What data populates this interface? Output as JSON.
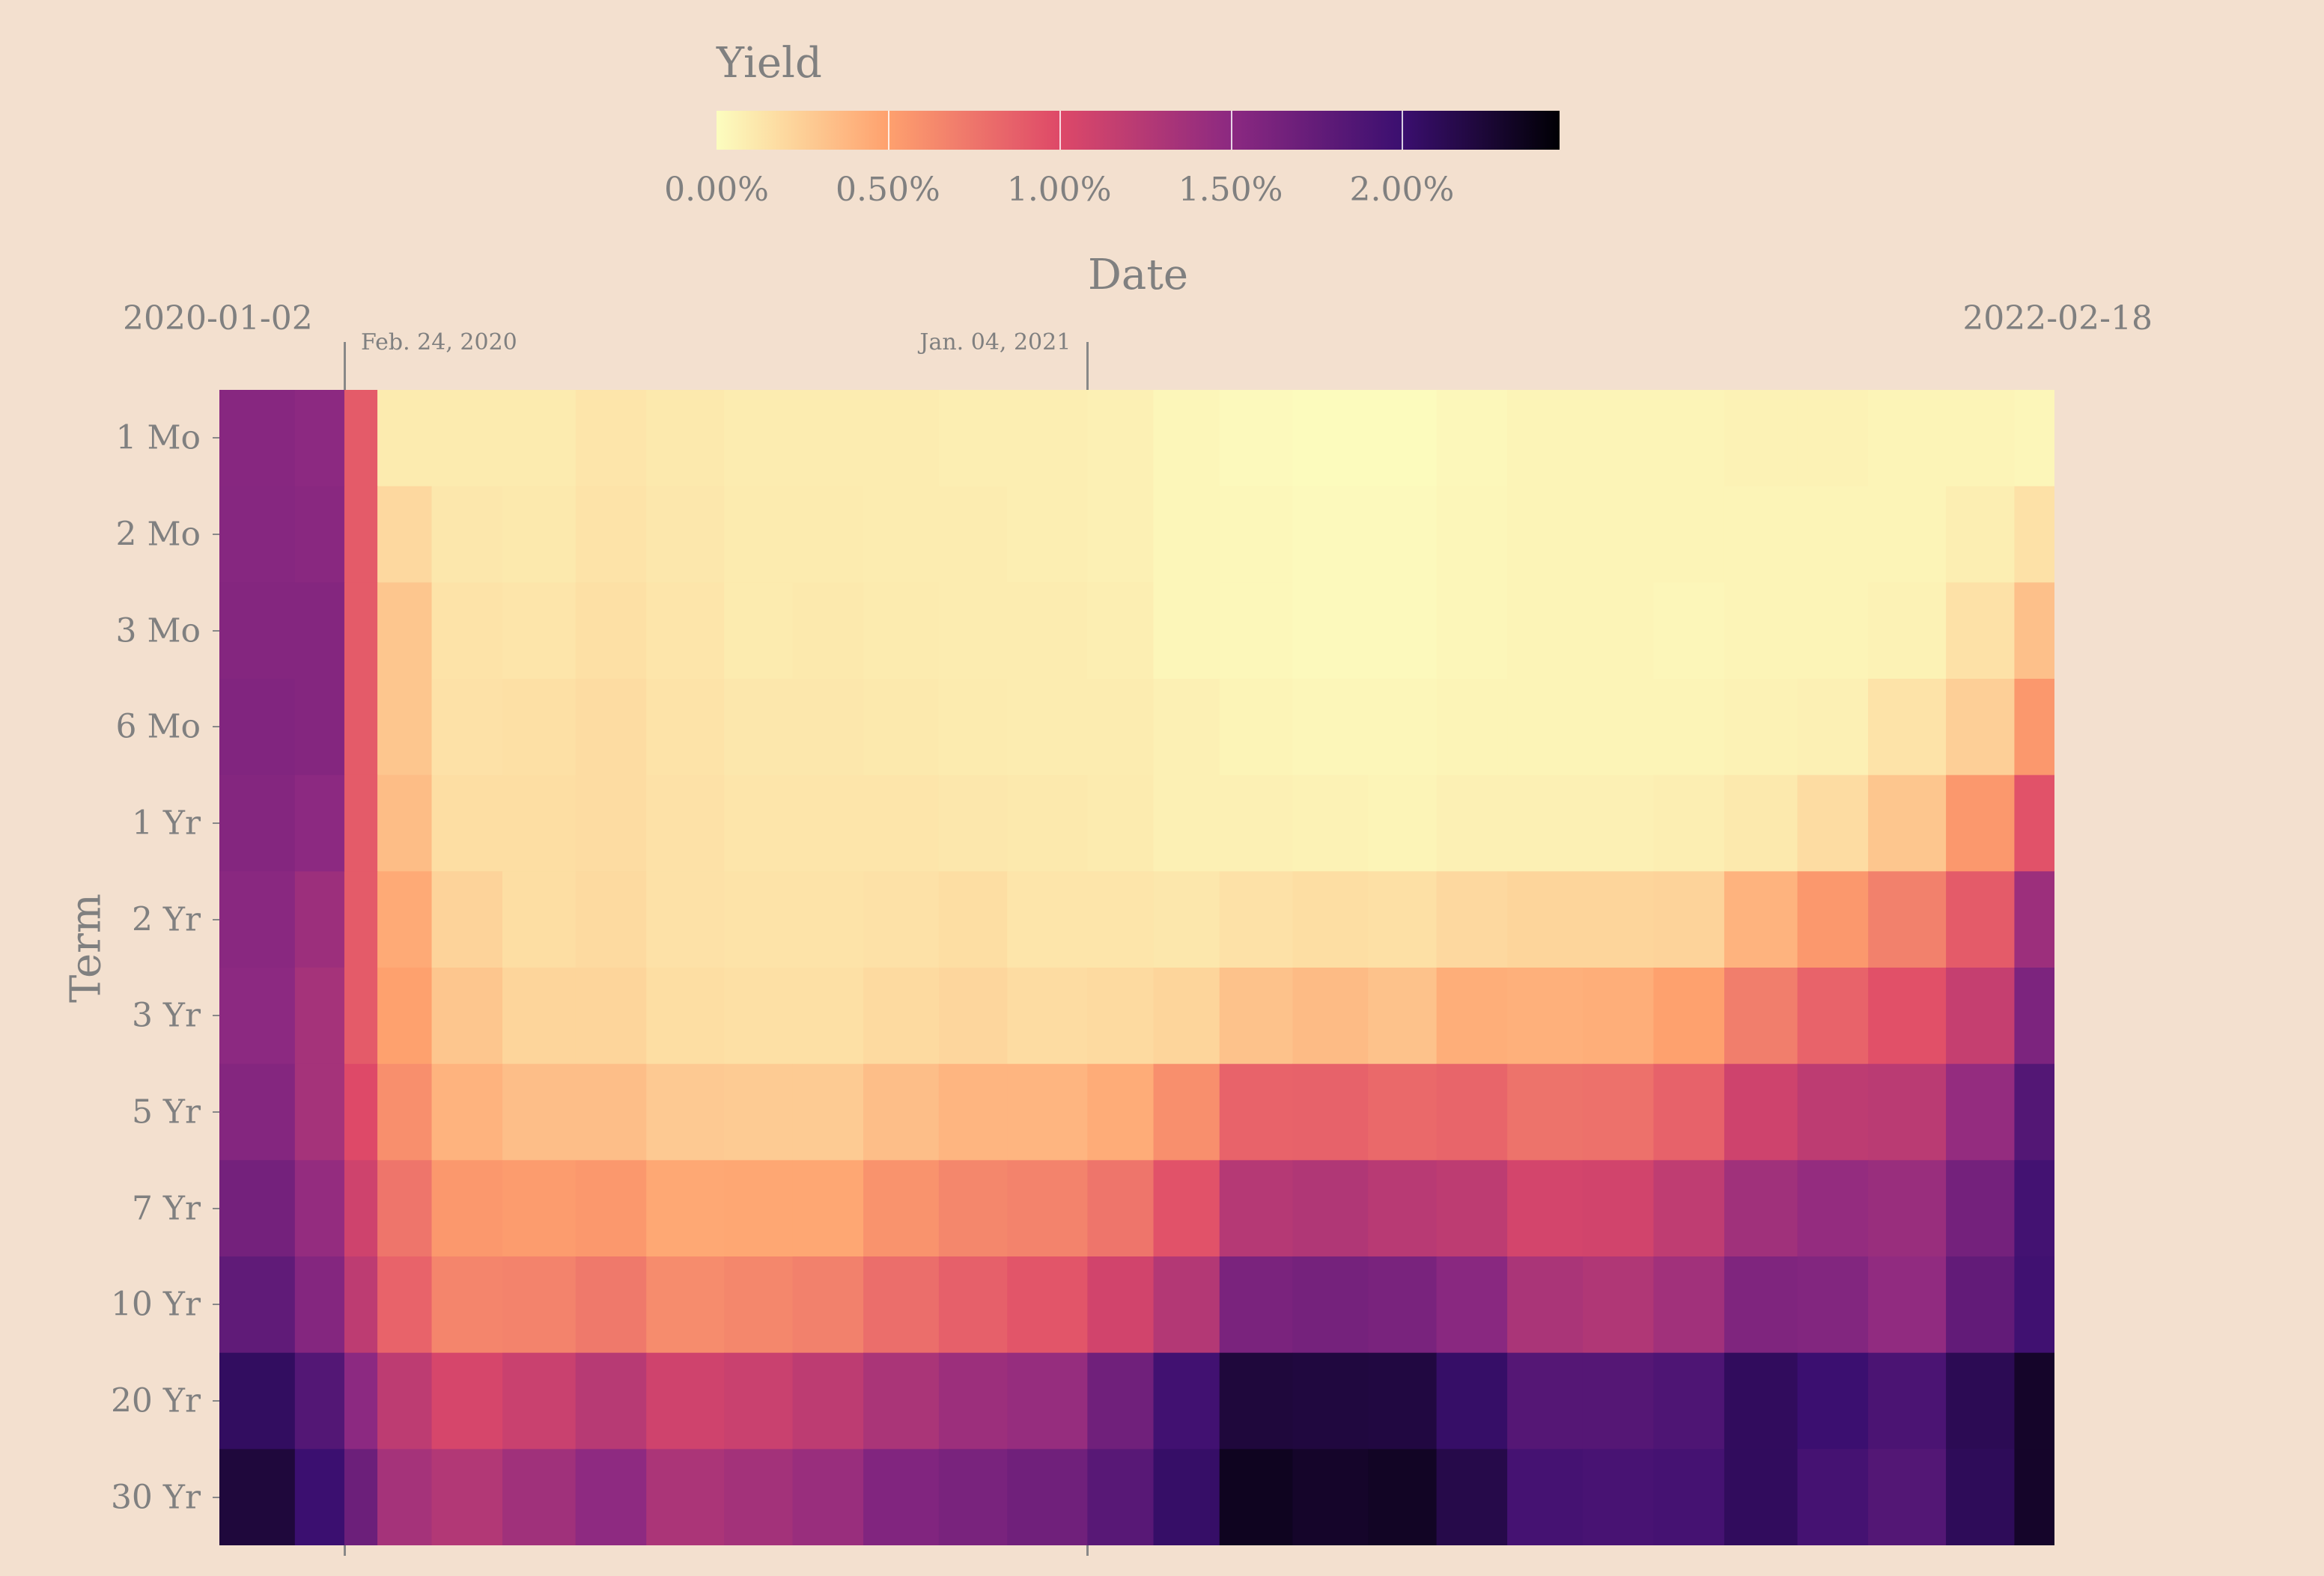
{
  "chart_data": {
    "type": "heatmap",
    "xlabel": "Date",
    "ylabel": "Term",
    "x_range_labels": [
      "2020-01-02",
      "2022-02-18"
    ],
    "x_range": [
      "2020-01-02",
      "2022-02-18"
    ],
    "colorbar": {
      "title": "Yield",
      "ticks": [
        0,
        0.5,
        1.0,
        1.5,
        2.0
      ],
      "tick_labels": [
        "0.00%",
        "0.50%",
        "1.00%",
        "1.50%",
        "2.00%"
      ],
      "range": [
        0,
        2.46
      ],
      "colormap": "magma (reversed)",
      "stops": [
        "#fcfdbf",
        "#fea16e",
        "#de4968",
        "#8c2981",
        "#3b0f70",
        "#000004"
      ],
      "stop_values": [
        0,
        0.5,
        1.0,
        1.5,
        2.0,
        2.46
      ]
    },
    "annotations": [
      {
        "date": "2020-02-24",
        "label": "Feb. 24, 2020"
      },
      {
        "date": "2021-01-04",
        "label": "Jan. 04, 2021"
      }
    ],
    "terms": [
      "1 Mo",
      "2 Mo",
      "3 Mo",
      "6 Mo",
      "1 Yr",
      "2 Yr",
      "3 Yr",
      "5 Yr",
      "7 Yr",
      "10 Yr",
      "20 Yr",
      "30 Yr"
    ],
    "dates": [
      "2020-01-02",
      "2020-02-03",
      "2020-02-24",
      "2020-03-09",
      "2020-04-01",
      "2020-05-01",
      "2020-06-01",
      "2020-07-01",
      "2020-08-03",
      "2020-09-01",
      "2020-10-01",
      "2020-11-02",
      "2020-12-01",
      "2021-01-04",
      "2021-02-01",
      "2021-03-01",
      "2021-04-01",
      "2021-05-03",
      "2021-06-01",
      "2021-07-01",
      "2021-08-02",
      "2021-09-01",
      "2021-10-01",
      "2021-11-01",
      "2021-12-01",
      "2022-01-03",
      "2022-02-01"
    ],
    "values": [
      [
        1.53,
        1.5,
        0.9,
        0.1,
        0.1,
        0.1,
        0.13,
        0.11,
        0.09,
        0.09,
        0.09,
        0.08,
        0.08,
        0.07,
        0.04,
        0.02,
        0.01,
        0.01,
        0.03,
        0.05,
        0.05,
        0.05,
        0.06,
        0.06,
        0.05,
        0.05,
        0.04
      ],
      [
        1.54,
        1.52,
        0.9,
        0.2,
        0.12,
        0.11,
        0.14,
        0.12,
        0.1,
        0.1,
        0.09,
        0.09,
        0.08,
        0.07,
        0.04,
        0.03,
        0.02,
        0.02,
        0.04,
        0.05,
        0.05,
        0.05,
        0.05,
        0.05,
        0.05,
        0.08,
        0.15
      ],
      [
        1.55,
        1.55,
        0.9,
        0.3,
        0.14,
        0.13,
        0.16,
        0.13,
        0.1,
        0.11,
        0.1,
        0.09,
        0.09,
        0.08,
        0.04,
        0.03,
        0.02,
        0.02,
        0.04,
        0.05,
        0.05,
        0.04,
        0.05,
        0.05,
        0.06,
        0.15,
        0.33
      ],
      [
        1.57,
        1.55,
        0.9,
        0.3,
        0.15,
        0.16,
        0.18,
        0.14,
        0.12,
        0.12,
        0.11,
        0.1,
        0.09,
        0.09,
        0.07,
        0.05,
        0.04,
        0.04,
        0.05,
        0.05,
        0.05,
        0.05,
        0.06,
        0.07,
        0.14,
        0.25,
        0.55
      ],
      [
        1.55,
        1.5,
        0.9,
        0.35,
        0.17,
        0.17,
        0.18,
        0.15,
        0.13,
        0.13,
        0.13,
        0.12,
        0.11,
        0.1,
        0.07,
        0.07,
        0.06,
        0.05,
        0.07,
        0.07,
        0.07,
        0.08,
        0.11,
        0.18,
        0.3,
        0.55,
        0.95
      ],
      [
        1.52,
        1.4,
        0.9,
        0.45,
        0.23,
        0.17,
        0.19,
        0.15,
        0.14,
        0.14,
        0.15,
        0.17,
        0.13,
        0.13,
        0.12,
        0.15,
        0.17,
        0.16,
        0.2,
        0.22,
        0.22,
        0.23,
        0.4,
        0.55,
        0.68,
        0.9,
        1.4
      ],
      [
        1.5,
        1.35,
        0.9,
        0.5,
        0.3,
        0.22,
        0.22,
        0.17,
        0.16,
        0.16,
        0.19,
        0.21,
        0.18,
        0.19,
        0.22,
        0.32,
        0.36,
        0.32,
        0.43,
        0.42,
        0.43,
        0.5,
        0.7,
        0.85,
        0.96,
        1.15,
        1.6
      ],
      [
        1.55,
        1.35,
        1.0,
        0.6,
        0.4,
        0.34,
        0.34,
        0.28,
        0.27,
        0.27,
        0.34,
        0.39,
        0.39,
        0.44,
        0.6,
        0.85,
        0.86,
        0.82,
        0.84,
        0.76,
        0.77,
        0.86,
        1.1,
        1.2,
        1.22,
        1.45,
        1.85
      ],
      [
        1.65,
        1.45,
        1.1,
        0.75,
        0.55,
        0.53,
        0.55,
        0.46,
        0.47,
        0.47,
        0.58,
        0.65,
        0.67,
        0.75,
        0.95,
        1.25,
        1.28,
        1.23,
        1.2,
        1.07,
        1.08,
        1.19,
        1.38,
        1.45,
        1.42,
        1.65,
        1.95
      ],
      [
        1.77,
        1.55,
        1.2,
        0.85,
        0.66,
        0.67,
        0.73,
        0.62,
        0.65,
        0.68,
        0.79,
        0.87,
        0.93,
        1.08,
        1.26,
        1.61,
        1.64,
        1.62,
        1.52,
        1.32,
        1.28,
        1.37,
        1.58,
        1.56,
        1.47,
        1.76,
        1.97
      ],
      [
        2.07,
        1.85,
        1.5,
        1.2,
        1.05,
        1.13,
        1.24,
        1.09,
        1.13,
        1.2,
        1.32,
        1.4,
        1.44,
        1.67,
        1.96,
        2.22,
        2.21,
        2.2,
        2.04,
        1.84,
        1.84,
        1.88,
        2.08,
        2.0,
        1.9,
        2.12,
        2.3
      ],
      [
        2.22,
        2.0,
        1.7,
        1.35,
        1.27,
        1.38,
        1.49,
        1.31,
        1.36,
        1.42,
        1.57,
        1.62,
        1.67,
        1.82,
        2.04,
        2.34,
        2.3,
        2.32,
        2.16,
        1.94,
        1.92,
        1.94,
        2.08,
        1.94,
        1.85,
        2.1,
        2.3
      ]
    ]
  }
}
